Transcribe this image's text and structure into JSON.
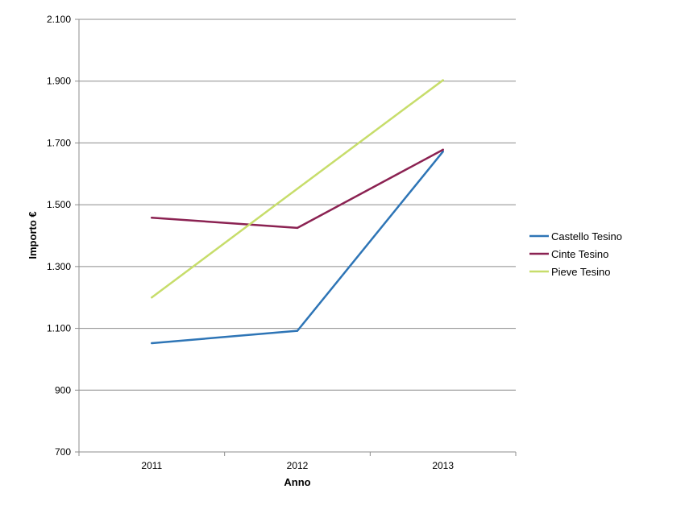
{
  "chart_data": {
    "type": "line",
    "title": "",
    "xlabel": "Anno",
    "ylabel": "Importo €",
    "categories": [
      "2011",
      "2012",
      "2013"
    ],
    "ylim": [
      700,
      2100
    ],
    "yticks": [
      700,
      900,
      1100,
      1300,
      1500,
      1700,
      1900,
      2100
    ],
    "ytick_labels": [
      "700",
      "900",
      "1.100",
      "1.300",
      "1.500",
      "1.700",
      "1.900",
      "2.100"
    ],
    "grid": "horizontal",
    "legend_position": "right",
    "series": [
      {
        "name": "Castello Tesino",
        "color": "#2e75b6",
        "values": [
          1052,
          1092,
          1672
        ]
      },
      {
        "name": "Cinte Tesino",
        "color": "#8b2252",
        "values": [
          1458,
          1425,
          1678
        ]
      },
      {
        "name": "Pieve Tesino",
        "color": "#c7dd6b",
        "values": [
          1200,
          1552,
          1903
        ]
      }
    ]
  }
}
